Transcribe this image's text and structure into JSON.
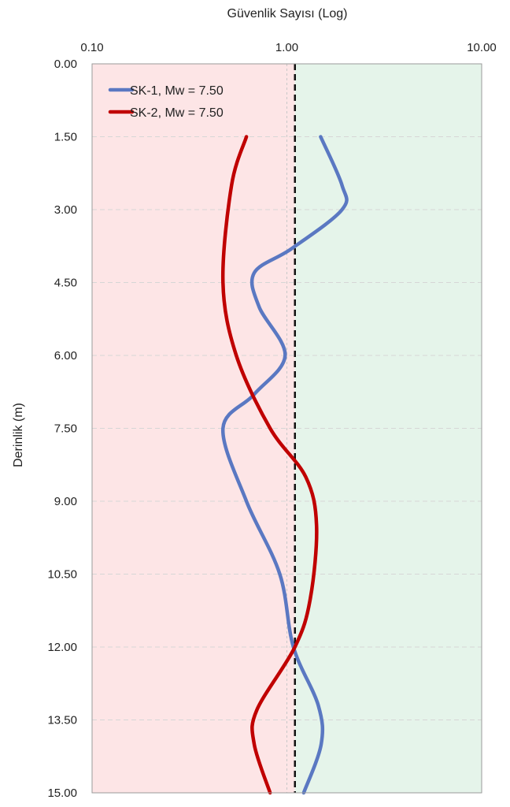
{
  "chart_data": {
    "type": "line",
    "xlabel": "Güvenlik Sayısı (Log)",
    "ylabel": "Derinlik (m)",
    "x_scale": "log",
    "x_axis_position": "top",
    "y_inverted": true,
    "xlim": [
      0.1,
      10
    ],
    "ylim": [
      0,
      15
    ],
    "x_ticks": [
      "0.10",
      "1.00",
      "10.00"
    ],
    "y_ticks": [
      "0.00",
      "1.50",
      "3.00",
      "4.50",
      "6.00",
      "7.50",
      "9.00",
      "10.50",
      "12.00",
      "13.50",
      "15.00"
    ],
    "grid": "horizontal dashed",
    "legend_position": "top-left",
    "threshold": {
      "fs": 1.1,
      "style": "black dashed vertical line"
    },
    "regions": [
      {
        "from": 0.1,
        "to": 1.1,
        "color": "#fde5e6"
      },
      {
        "from": 1.1,
        "to": 10,
        "color": "#e5f4ea"
      }
    ],
    "series": [
      {
        "name": "SK-1, Mw = 7.50",
        "color": "#5a78c2",
        "points": [
          {
            "depth": 1.5,
            "fs": 1.49
          },
          {
            "depth": 2.5,
            "fs": 1.92
          },
          {
            "depth": 3.0,
            "fs": 1.92
          },
          {
            "depth": 3.8,
            "fs": 1.06
          },
          {
            "depth": 4.3,
            "fs": 0.68
          },
          {
            "depth": 5.0,
            "fs": 0.72
          },
          {
            "depth": 6.0,
            "fs": 0.98
          },
          {
            "depth": 6.8,
            "fs": 0.68
          },
          {
            "depth": 7.5,
            "fs": 0.47
          },
          {
            "depth": 9.0,
            "fs": 0.62
          },
          {
            "depth": 10.5,
            "fs": 0.92
          },
          {
            "depth": 12.0,
            "fs": 1.08
          },
          {
            "depth": 13.2,
            "fs": 1.45
          },
          {
            "depth": 14.0,
            "fs": 1.5
          },
          {
            "depth": 15.0,
            "fs": 1.22
          }
        ]
      },
      {
        "name": "SK-2, Mw = 7.50",
        "color": "#c00000",
        "points": [
          {
            "depth": 1.5,
            "fs": 0.62
          },
          {
            "depth": 2.5,
            "fs": 0.52
          },
          {
            "depth": 4.5,
            "fs": 0.47
          },
          {
            "depth": 6.0,
            "fs": 0.55
          },
          {
            "depth": 7.5,
            "fs": 0.82
          },
          {
            "depth": 8.5,
            "fs": 1.25
          },
          {
            "depth": 9.5,
            "fs": 1.42
          },
          {
            "depth": 11.0,
            "fs": 1.32
          },
          {
            "depth": 12.0,
            "fs": 1.1
          },
          {
            "depth": 13.3,
            "fs": 0.7
          },
          {
            "depth": 14.0,
            "fs": 0.68
          },
          {
            "depth": 15.0,
            "fs": 0.82
          }
        ]
      }
    ]
  }
}
